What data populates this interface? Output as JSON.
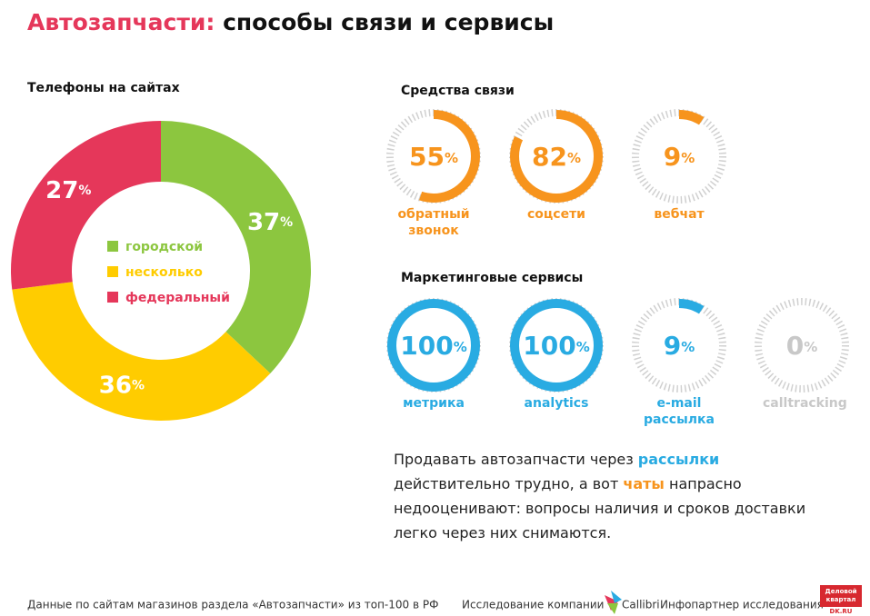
{
  "header": {
    "accent": "Автозапчасти:",
    "rest": "способы связи и сервисы"
  },
  "chart_data": [
    {
      "type": "pie",
      "title": "Телефоны на сайтах",
      "categories": [
        "городской",
        "несколько",
        "федеральный"
      ],
      "values": [
        37,
        36,
        27
      ],
      "unit": "%",
      "colors": [
        "#8cc63f",
        "#ffcc00",
        "#e5375a"
      ],
      "legend": true
    },
    {
      "type": "gauge",
      "title": "Средства связи",
      "categories": [
        "обратный звонок",
        "соцсети",
        "вебчат"
      ],
      "values": [
        55,
        82,
        9
      ],
      "unit": "%",
      "ylim": [
        0,
        100
      ],
      "colors": [
        "#f7941d",
        "#f7941d",
        "#f7941d"
      ]
    },
    {
      "type": "gauge",
      "title": "Маркетинговые сервисы",
      "categories": [
        "метрика",
        "analytics",
        "e-mail рассылка",
        "calltracking"
      ],
      "values": [
        100,
        100,
        9,
        0
      ],
      "unit": "%",
      "ylim": [
        0,
        100
      ],
      "colors": [
        "#29abe2",
        "#29abe2",
        "#29abe2",
        "#c8c8c8"
      ]
    }
  ],
  "note": [
    "Продавать автозапчасти через ",
    "рассылки",
    " действительно трудно, а вот ",
    "чаты",
    " напрасно недооценивают: вопросы наличия и сроков доставки легко через них снимаются."
  ],
  "footer": {
    "source": "Данные по сайтам магазинов раздела «Автозапчасти» из топ-100 в РФ",
    "research": "Исследование компании",
    "company": "Callibri",
    "partner": "Инфопартнер исследования",
    "logo_line1": "Деловой",
    "logo_line2": "квартал",
    "logo_site": "DK.RU"
  }
}
